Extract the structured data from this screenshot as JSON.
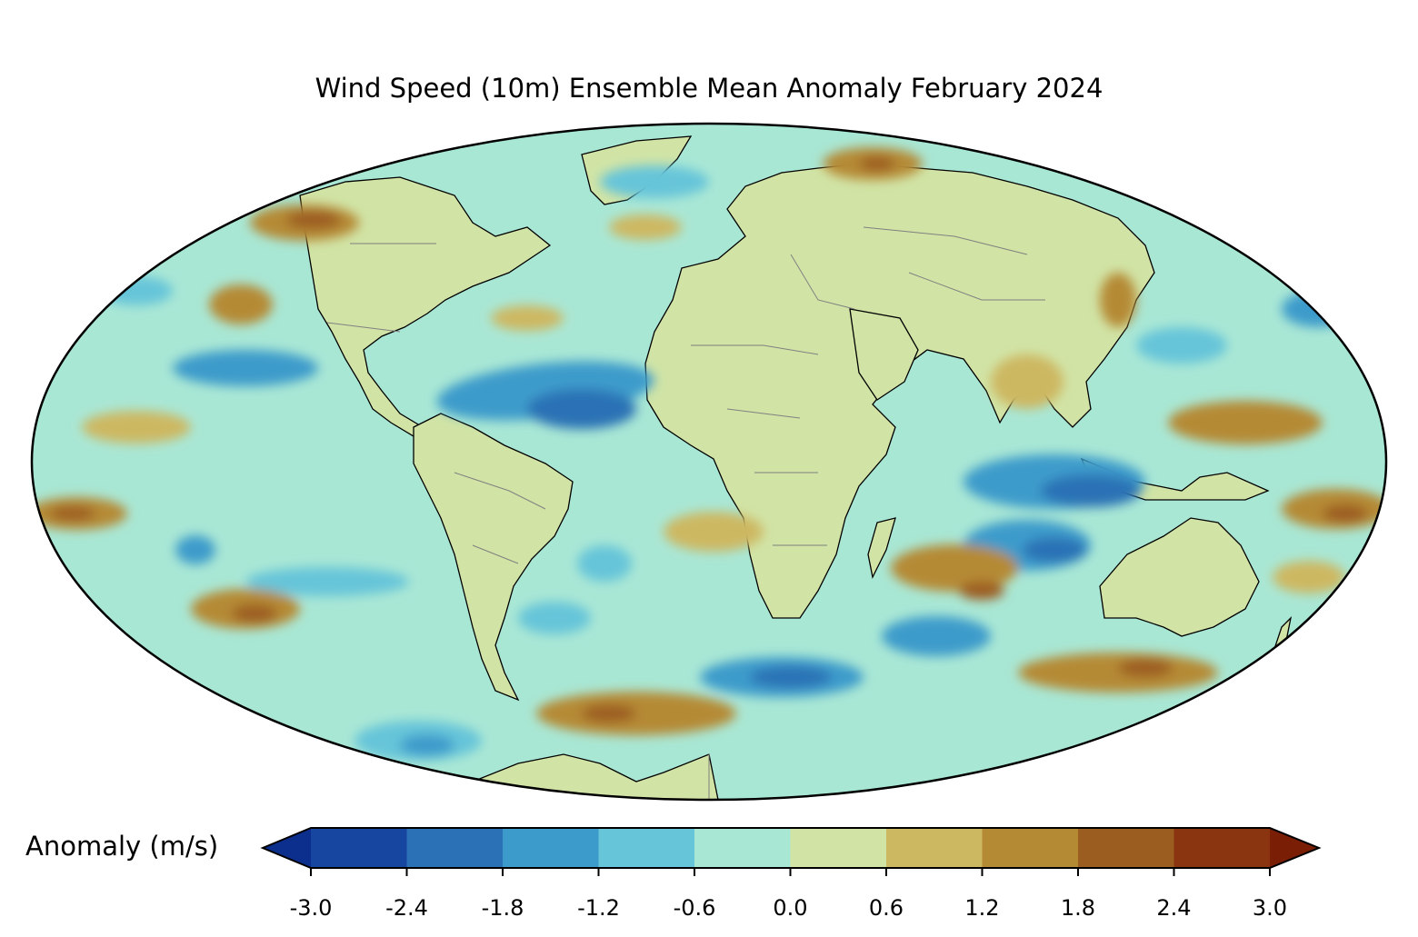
{
  "title": "Wind Speed (10m) Ensemble Mean Anomaly February 2024",
  "colorbar": {
    "label": "Anomaly (m/s)",
    "ticks": [
      "-3.0",
      "-2.4",
      "-1.8",
      "-1.2",
      "-0.6",
      "0.0",
      "0.6",
      "1.2",
      "1.8",
      "2.4",
      "3.0"
    ],
    "tick_values": [
      -3.0,
      -2.4,
      -1.8,
      -1.2,
      -0.6,
      0.0,
      0.6,
      1.2,
      1.8,
      2.4,
      3.0
    ],
    "under_color": "#0c2f8e",
    "over_color": "#7a1e06",
    "bin_colors": [
      "#1646a0",
      "#2a72b5",
      "#3c9bcb",
      "#66c5d9",
      "#a9e7d5",
      "#d1e4a6",
      "#cdb862",
      "#b58a35",
      "#9c5d20",
      "#8a3410"
    ]
  },
  "colors": {
    "land_fill": "#d1e4a6",
    "ocean_base": "#a9e7d5",
    "coastline": "#000000",
    "borders": "#808080"
  }
}
